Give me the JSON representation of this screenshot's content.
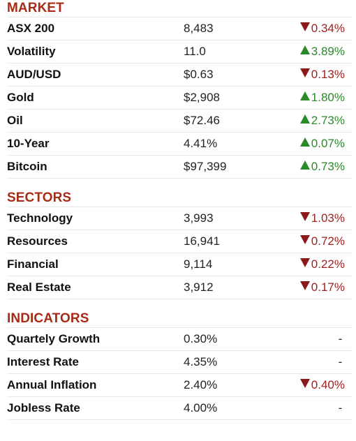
{
  "colors": {
    "heading": "#a82b16",
    "down": "#a02020",
    "up": "#2a8a2a",
    "divider": "#e9e9e9"
  },
  "market": {
    "title": "MARKET",
    "rows": [
      {
        "name": "ASX 200",
        "value": "8,483",
        "change": "0.34%",
        "direction": "down"
      },
      {
        "name": "Volatility",
        "value": "11.0",
        "change": "3.89%",
        "direction": "up"
      },
      {
        "name": "AUD/USD",
        "value": "$0.63",
        "change": "0.13%",
        "direction": "down"
      },
      {
        "name": "Gold",
        "value": "$2,908",
        "change": "1.80%",
        "direction": "up"
      },
      {
        "name": "Oil",
        "value": "$72.46",
        "change": "2.73%",
        "direction": "up"
      },
      {
        "name": "10-Year",
        "value": "4.41%",
        "change": "0.07%",
        "direction": "up"
      },
      {
        "name": "Bitcoin",
        "value": "$97,399",
        "change": "0.73%",
        "direction": "up"
      }
    ]
  },
  "sectors": {
    "title": "SECTORS",
    "rows": [
      {
        "name": "Technology",
        "value": "3,993",
        "change": "1.03%",
        "direction": "down"
      },
      {
        "name": "Resources",
        "value": "16,941",
        "change": "0.72%",
        "direction": "down"
      },
      {
        "name": "Financial",
        "value": "9,114",
        "change": "0.22%",
        "direction": "down"
      },
      {
        "name": "Real Estate",
        "value": "3,912",
        "change": "0.17%",
        "direction": "down"
      }
    ]
  },
  "indicators": {
    "title": "INDICATORS",
    "rows": [
      {
        "name": "Quartely Growth",
        "value": "0.30%",
        "change": "-",
        "direction": "flat"
      },
      {
        "name": "Interest Rate",
        "value": "4.35%",
        "change": "-",
        "direction": "flat"
      },
      {
        "name": "Annual Inflation",
        "value": "2.40%",
        "change": "0.40%",
        "direction": "down"
      },
      {
        "name": "Jobless Rate",
        "value": "4.00%",
        "change": "-",
        "direction": "flat"
      }
    ]
  }
}
